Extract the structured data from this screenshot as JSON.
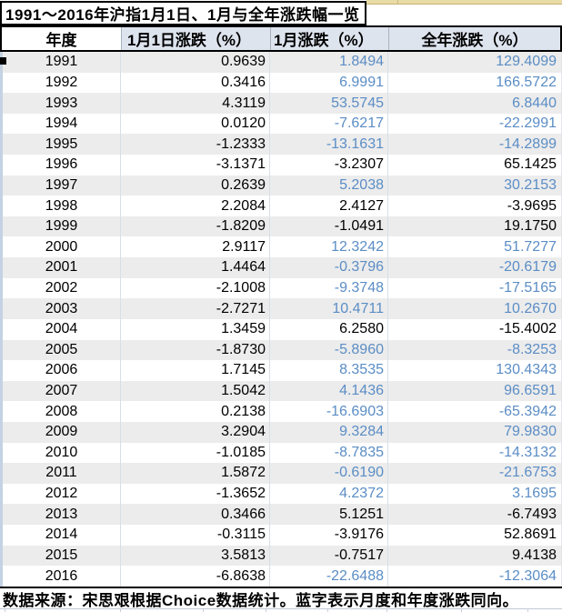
{
  "colors": {
    "blue_text": "#5B8DC5",
    "stripe_gray": "#ECECEC",
    "header_bg": "#DEE4EE",
    "top_strip_tan": "#E9DBA5"
  },
  "chart_data": {
    "type": "table",
    "title": "1991～2016年沪指1月1日、1月与全年涨跌幅一览",
    "columns": [
      "年度",
      "1月1日涨跌（%）",
      "1月涨跌（%）",
      "全年涨跌（%）"
    ],
    "legend_note": "蓝字表示月度和年度涨跌同向",
    "footnote": "数据来源：宋思艰根据Choice数据统计。蓝字表示月度和年度涨跌同向。",
    "rows": [
      {
        "year": "1991",
        "jan1_change": "0.9639",
        "jan_change": "1.8494",
        "year_change": "129.4099",
        "same_direction": true
      },
      {
        "year": "1992",
        "jan1_change": "0.3416",
        "jan_change": "6.9991",
        "year_change": "166.5722",
        "same_direction": true
      },
      {
        "year": "1993",
        "jan1_change": "4.3119",
        "jan_change": "53.5745",
        "year_change": "6.8440",
        "same_direction": true
      },
      {
        "year": "1994",
        "jan1_change": "0.0120",
        "jan_change": "-7.6217",
        "year_change": "-22.2991",
        "same_direction": true
      },
      {
        "year": "1995",
        "jan1_change": "-1.2333",
        "jan_change": "-13.1631",
        "year_change": "-14.2899",
        "same_direction": true
      },
      {
        "year": "1996",
        "jan1_change": "-3.1371",
        "jan_change": "-3.2307",
        "year_change": "65.1425",
        "same_direction": false
      },
      {
        "year": "1997",
        "jan1_change": "0.2639",
        "jan_change": "5.2038",
        "year_change": "30.2153",
        "same_direction": true
      },
      {
        "year": "1998",
        "jan1_change": "2.2084",
        "jan_change": "2.4127",
        "year_change": "-3.9695",
        "same_direction": false
      },
      {
        "year": "1999",
        "jan1_change": "-1.8209",
        "jan_change": "-1.0491",
        "year_change": "19.1750",
        "same_direction": false
      },
      {
        "year": "2000",
        "jan1_change": "2.9117",
        "jan_change": "12.3242",
        "year_change": "51.7277",
        "same_direction": true
      },
      {
        "year": "2001",
        "jan1_change": "1.4464",
        "jan_change": "-0.3796",
        "year_change": "-20.6179",
        "same_direction": true
      },
      {
        "year": "2002",
        "jan1_change": "-2.1008",
        "jan_change": "-9.3748",
        "year_change": "-17.5165",
        "same_direction": true
      },
      {
        "year": "2003",
        "jan1_change": "-2.7271",
        "jan_change": "10.4711",
        "year_change": "10.2670",
        "same_direction": true
      },
      {
        "year": "2004",
        "jan1_change": "1.3459",
        "jan_change": "6.2580",
        "year_change": "-15.4002",
        "same_direction": false
      },
      {
        "year": "2005",
        "jan1_change": "-1.8730",
        "jan_change": "-5.8960",
        "year_change": "-8.3253",
        "same_direction": true
      },
      {
        "year": "2006",
        "jan1_change": "1.7145",
        "jan_change": "8.3535",
        "year_change": "130.4343",
        "same_direction": true
      },
      {
        "year": "2007",
        "jan1_change": "1.5042",
        "jan_change": "4.1436",
        "year_change": "96.6591",
        "same_direction": true
      },
      {
        "year": "2008",
        "jan1_change": "0.2138",
        "jan_change": "-16.6903",
        "year_change": "-65.3942",
        "same_direction": true
      },
      {
        "year": "2009",
        "jan1_change": "3.2904",
        "jan_change": "9.3284",
        "year_change": "79.9830",
        "same_direction": true
      },
      {
        "year": "2010",
        "jan1_change": "-1.0185",
        "jan_change": "-8.7835",
        "year_change": "-14.3132",
        "same_direction": true
      },
      {
        "year": "2011",
        "jan1_change": "1.5872",
        "jan_change": "-0.6190",
        "year_change": "-21.6753",
        "same_direction": true
      },
      {
        "year": "2012",
        "jan1_change": "-1.3652",
        "jan_change": "4.2372",
        "year_change": "3.1695",
        "same_direction": true
      },
      {
        "year": "2013",
        "jan1_change": "0.3466",
        "jan_change": "5.1251",
        "year_change": "-6.7493",
        "same_direction": false
      },
      {
        "year": "2014",
        "jan1_change": "-0.3115",
        "jan_change": "-3.9176",
        "year_change": "52.8691",
        "same_direction": false
      },
      {
        "year": "2015",
        "jan1_change": "3.5813",
        "jan_change": "-0.7517",
        "year_change": "9.4138",
        "same_direction": false
      },
      {
        "year": "2016",
        "jan1_change": "-6.8638",
        "jan_change": "-22.6488",
        "year_change": "-12.3064",
        "same_direction": true
      }
    ]
  }
}
